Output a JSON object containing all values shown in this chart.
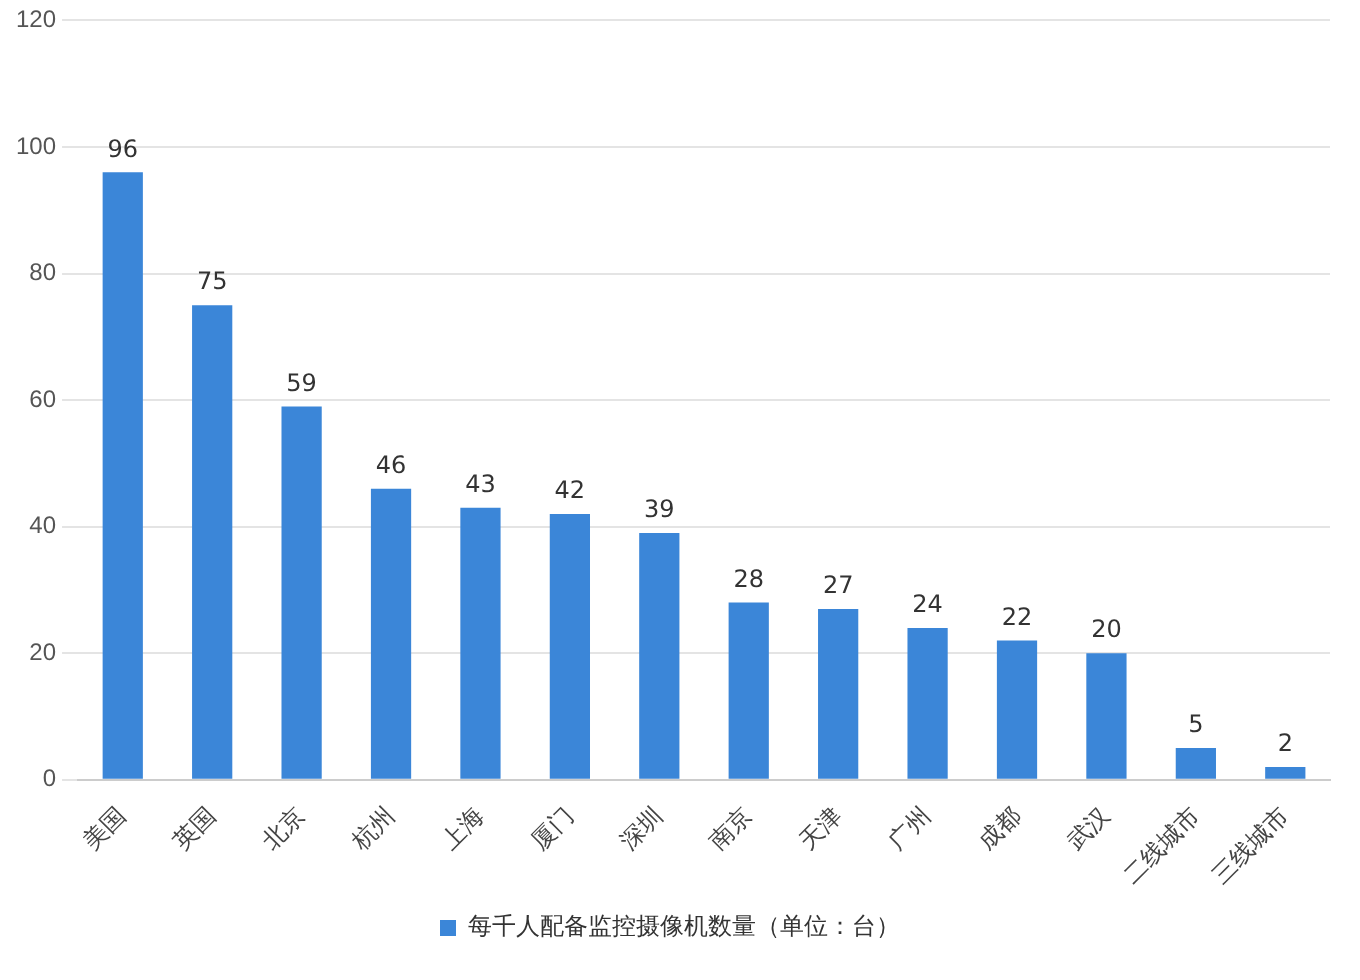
{
  "chart_data": {
    "type": "bar",
    "categories": [
      "美国",
      "英国",
      "北京",
      "杭州",
      "上海",
      "厦门",
      "深圳",
      "南京",
      "天津",
      "广州",
      "成都",
      "武汉",
      "二线城市",
      "三线城市"
    ],
    "series": [
      {
        "name": "每千人配备监控摄像机数量（单位：台）",
        "color": "#3b86d8",
        "values": [
          96,
          75,
          59,
          46,
          43,
          42,
          39,
          28,
          27,
          24,
          22,
          20,
          5,
          2
        ]
      }
    ],
    "ylim": [
      0,
      120
    ],
    "yticks": [
      0,
      20,
      40,
      60,
      80,
      100,
      120
    ],
    "grid": "y",
    "legend": "bottom",
    "data_labels": true
  }
}
